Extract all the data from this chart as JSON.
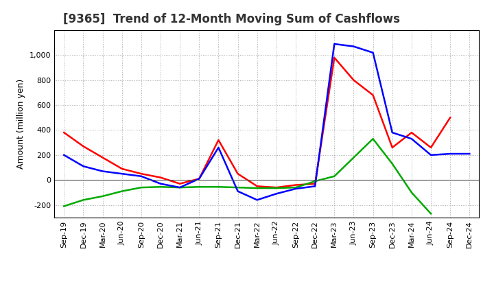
{
  "title": "[9365]  Trend of 12-Month Moving Sum of Cashflows",
  "ylabel": "Amount (million yen)",
  "x_labels": [
    "Sep-19",
    "Dec-19",
    "Mar-20",
    "Jun-20",
    "Sep-20",
    "Dec-20",
    "Mar-21",
    "Jun-21",
    "Sep-21",
    "Dec-21",
    "Mar-22",
    "Jun-22",
    "Sep-22",
    "Dec-22",
    "Mar-23",
    "Jun-23",
    "Sep-23",
    "Dec-23",
    "Mar-24",
    "Jun-24",
    "Sep-24",
    "Dec-24"
  ],
  "operating_cashflow": [
    380,
    270,
    180,
    90,
    50,
    20,
    -30,
    10,
    320,
    50,
    -50,
    -60,
    -40,
    -30,
    980,
    800,
    680,
    260,
    380,
    260,
    500,
    null
  ],
  "investing_cashflow": [
    -210,
    -160,
    -130,
    -90,
    -60,
    -55,
    -60,
    -55,
    -55,
    -60,
    -65,
    -65,
    -60,
    -10,
    30,
    180,
    330,
    130,
    -100,
    -270,
    null,
    null
  ],
  "free_cashflow": [
    200,
    110,
    70,
    50,
    30,
    -30,
    -60,
    10,
    260,
    -90,
    -160,
    -110,
    -70,
    -50,
    1090,
    1070,
    1020,
    380,
    330,
    200,
    210,
    210
  ],
  "operating_color": "#ff0000",
  "investing_color": "#00aa00",
  "free_color": "#0000ff",
  "bg_color": "#ffffff",
  "plot_bg_color": "#ffffff",
  "grid_color": "#aaaaaa",
  "ylim": [
    -300,
    1200
  ],
  "yticks": [
    -200,
    0,
    200,
    400,
    600,
    800,
    1000
  ],
  "linewidth": 1.8,
  "title_fontsize": 12,
  "axis_fontsize": 9,
  "tick_fontsize": 8
}
